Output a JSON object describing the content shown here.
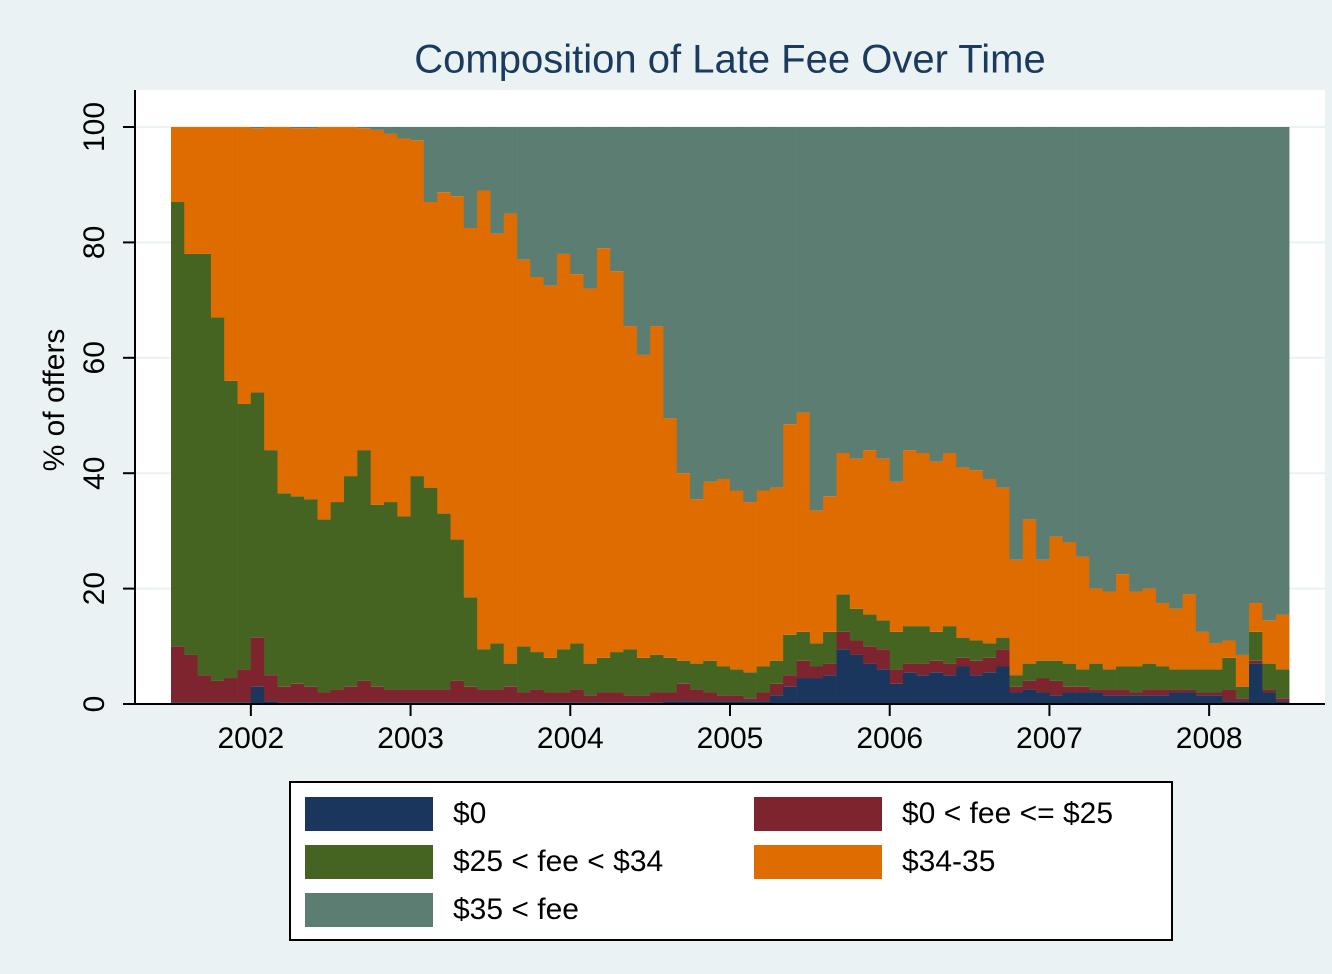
{
  "chart_data": {
    "type": "stacked-bar",
    "title": "Composition of Late Fee Over Time",
    "y_label": "% of offers",
    "x": [
      2001.5,
      2001.583,
      2001.667,
      2001.75,
      2001.833,
      2001.917,
      2002,
      2002.083,
      2002.167,
      2002.25,
      2002.333,
      2002.417,
      2002.5,
      2002.583,
      2002.667,
      2002.75,
      2002.833,
      2002.917,
      2003,
      2003.083,
      2003.167,
      2003.25,
      2003.333,
      2003.417,
      2003.5,
      2003.583,
      2003.667,
      2003.75,
      2003.833,
      2003.917,
      2004,
      2004.083,
      2004.167,
      2004.25,
      2004.333,
      2004.417,
      2004.5,
      2004.583,
      2004.667,
      2004.75,
      2004.833,
      2004.917,
      2005,
      2005.083,
      2005.167,
      2005.25,
      2005.333,
      2005.417,
      2005.5,
      2005.583,
      2005.667,
      2005.75,
      2005.833,
      2005.917,
      2006,
      2006.083,
      2006.167,
      2006.25,
      2006.333,
      2006.417,
      2006.5,
      2006.583,
      2006.667,
      2006.75,
      2006.833,
      2006.917,
      2007,
      2007.083,
      2007.167,
      2007.25,
      2007.333,
      2007.417,
      2007.5,
      2007.583,
      2007.667,
      2007.75,
      2007.833,
      2007.917,
      2008,
      2008.083,
      2008.167,
      2008.25,
      2008.333,
      2008.417
    ],
    "series": [
      {
        "name": "$0",
        "color": "#1b365d",
        "values": [
          0.3,
          0.3,
          0.3,
          0.3,
          0.3,
          0.3,
          3,
          0.5,
          0.3,
          0.3,
          0.3,
          0.3,
          0.3,
          0.3,
          0.3,
          0.3,
          0.3,
          0.3,
          0.3,
          0.3,
          0.3,
          0.3,
          0.3,
          0.3,
          0.3,
          0.3,
          0.3,
          0.3,
          0.3,
          0.3,
          0.3,
          0.3,
          0.3,
          0.3,
          0.3,
          0.3,
          0.3,
          0.5,
          0.5,
          0.5,
          0.5,
          0.5,
          0.5,
          0.5,
          0.5,
          1.5,
          3,
          4.5,
          4.5,
          5,
          9.5,
          8.5,
          7,
          6,
          3.5,
          5.5,
          5,
          5.5,
          5,
          6.5,
          5,
          5.5,
          6.5,
          2,
          2.5,
          2,
          1.5,
          2,
          2,
          2,
          1.5,
          1.5,
          1.5,
          1.5,
          1.5,
          2,
          2,
          1.5,
          1.5,
          0.5,
          0.5,
          7,
          2,
          0.5
        ]
      },
      {
        "name": "$0 < fee <= $25",
        "color": "#7d242f",
        "values": [
          9.7,
          8.2,
          4.7,
          3.7,
          4.2,
          5.7,
          8.5,
          4.5,
          2.7,
          3.2,
          2.7,
          1.7,
          2.2,
          2.7,
          3.7,
          2.7,
          2.2,
          2.2,
          2.2,
          2.2,
          2.2,
          3.7,
          2.7,
          2.2,
          2.2,
          2.7,
          1.7,
          2.2,
          1.7,
          1.7,
          2.2,
          1.2,
          1.7,
          1.7,
          1.2,
          1.2,
          1.7,
          1.5,
          3,
          2,
          1.5,
          1,
          1,
          0.5,
          1.5,
          2,
          2,
          3,
          2,
          2,
          3,
          2.5,
          3,
          3.5,
          2.5,
          1.5,
          2,
          2,
          2,
          1.5,
          2.5,
          2.5,
          3,
          1,
          1.5,
          2.5,
          2.5,
          1,
          1,
          0.5,
          1,
          1,
          0.5,
          1,
          1,
          0.5,
          0.5,
          0.5,
          0.5,
          2,
          0.5,
          0.5,
          0.5,
          0.5
        ]
      },
      {
        "name": "$25 < fee < $34",
        "color": "#456421",
        "values": [
          77,
          69.5,
          73,
          63,
          51.5,
          46,
          42.5,
          39,
          33.5,
          32.5,
          32.5,
          30,
          32.5,
          36.5,
          40,
          31.5,
          32.5,
          30,
          37,
          35,
          30.5,
          24.5,
          15.5,
          7,
          8,
          4,
          8,
          6.5,
          6,
          7.5,
          8,
          5.5,
          6,
          7,
          8,
          6.5,
          6.5,
          6,
          4,
          4.5,
          5.5,
          5,
          4.5,
          4.5,
          4.5,
          4,
          7,
          5,
          4,
          5.5,
          6.5,
          5.5,
          5.5,
          5,
          6.5,
          6.5,
          6.5,
          5,
          6.5,
          3.5,
          3.5,
          2.5,
          2,
          2,
          3,
          3,
          3.5,
          4,
          3,
          4.5,
          3.5,
          4,
          4.5,
          4.5,
          4,
          3.5,
          3.5,
          4,
          4,
          5.5,
          2,
          5,
          4.5,
          5
        ]
      },
      {
        "name": "$34-35",
        "color": "#df6c00",
        "values": [
          13,
          22,
          22,
          33,
          44,
          48,
          45.8,
          56,
          63.5,
          63.8,
          64.3,
          68,
          65,
          60.5,
          55.8,
          65,
          63.8,
          65.5,
          58.2,
          49.5,
          55.7,
          59.5,
          64,
          79.5,
          71,
          78,
          67,
          65,
          64.5,
          68.5,
          64,
          65,
          71,
          66,
          56,
          52.5,
          57,
          41.5,
          32.5,
          28.5,
          31,
          32.5,
          31,
          29.5,
          30.5,
          30,
          36.5,
          38,
          23,
          23.5,
          24.5,
          26,
          28.5,
          28,
          26,
          30.5,
          30,
          29.5,
          30,
          29.5,
          29.5,
          28.5,
          26,
          20,
          25,
          17.5,
          21.5,
          21,
          19.5,
          13,
          13.5,
          16,
          13,
          13,
          11,
          10.5,
          13,
          6.5,
          4.5,
          3,
          5.5,
          5,
          7.5,
          9.5
        ]
      },
      {
        "name": "$35 < fee",
        "color": "#5c7d71",
        "values": [
          0,
          0,
          0,
          0,
          0,
          0,
          0.2,
          0,
          0,
          0.2,
          0.2,
          0,
          0,
          0,
          0.2,
          0.5,
          1.2,
          2,
          2.3,
          13,
          11.3,
          12,
          17.5,
          11,
          18.5,
          15,
          23,
          26,
          27.5,
          22,
          25.5,
          28,
          21,
          25,
          34.5,
          39.5,
          34.5,
          50.5,
          60,
          64.5,
          61.5,
          61,
          63,
          65,
          63,
          62.5,
          51.5,
          49.5,
          66.5,
          64,
          56.5,
          57.5,
          56,
          57.5,
          61.5,
          56,
          56.5,
          58,
          56.5,
          59,
          59.5,
          61,
          62.5,
          75,
          68,
          75,
          71,
          72,
          74.5,
          80,
          80.5,
          77.5,
          80.5,
          80,
          82.5,
          83.5,
          81,
          87.5,
          89.5,
          89,
          91.5,
          82.5,
          85.5,
          84.5
        ]
      }
    ],
    "xlim": [
      2001.5,
      2008.5
    ],
    "xticks": [
      2002,
      2003,
      2004,
      2005,
      2006,
      2007,
      2008
    ],
    "ylim": [
      0,
      100
    ],
    "yticks": [
      0,
      20,
      40,
      60,
      80,
      100
    ],
    "grid": true,
    "legend": "bottom"
  }
}
